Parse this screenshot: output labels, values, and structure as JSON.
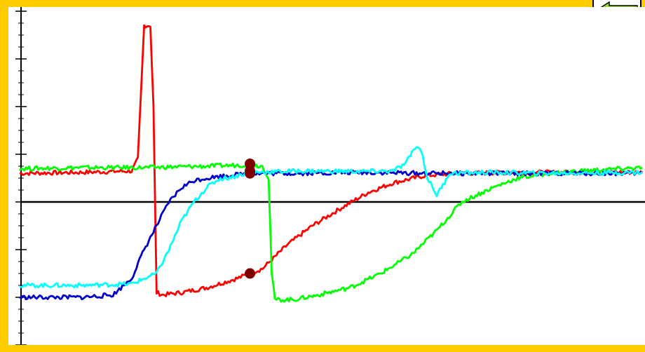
{
  "title": "",
  "back_button": {
    "icon": "left-arrow-icon",
    "color": "#99dd33"
  },
  "chart_data": {
    "type": "line",
    "title": "",
    "xlabel": "",
    "ylabel": "",
    "xlim": [
      0,
      100
    ],
    "ylim": [
      -3,
      4
    ],
    "grid": false,
    "legend": "none",
    "baseline": 0,
    "y_ticks_major": [
      -3,
      -2,
      -1,
      0,
      1,
      2,
      3,
      4
    ],
    "y_ticks_minor_per_major": 4,
    "series": [
      {
        "color": "#ff0000",
        "points": [
          [
            0,
            0.6
          ],
          [
            10,
            0.62
          ],
          [
            18,
            0.65
          ],
          [
            19,
            0.9
          ],
          [
            20,
            3.7
          ],
          [
            21,
            3.7
          ],
          [
            21.5,
            2
          ],
          [
            22,
            -1.9
          ],
          [
            23,
            -1.95
          ],
          [
            26,
            -1.9
          ],
          [
            30,
            -1.8
          ],
          [
            35,
            -1.6
          ],
          [
            37,
            -1.5
          ],
          [
            39,
            -1.4
          ],
          [
            43,
            -0.9
          ],
          [
            47,
            -0.5
          ],
          [
            52,
            -0.1
          ],
          [
            56,
            0.2
          ],
          [
            60,
            0.4
          ],
          [
            65,
            0.55
          ],
          [
            70,
            0.6
          ],
          [
            80,
            0.62
          ],
          [
            100,
            0.62
          ]
        ],
        "markers": [
          [
            37,
            -1.5
          ]
        ]
      },
      {
        "color": "#00ff00",
        "points": [
          [
            0,
            0.7
          ],
          [
            10,
            0.72
          ],
          [
            20,
            0.72
          ],
          [
            30,
            0.75
          ],
          [
            37,
            0.78
          ],
          [
            39,
            0.75
          ],
          [
            40,
            0.5
          ],
          [
            40.5,
            -1.5
          ],
          [
            41,
            -2.05
          ],
          [
            44,
            -2.05
          ],
          [
            48,
            -1.95
          ],
          [
            53,
            -1.8
          ],
          [
            58,
            -1.5
          ],
          [
            63,
            -1.1
          ],
          [
            67,
            -0.6
          ],
          [
            71,
            0
          ],
          [
            76,
            0.3
          ],
          [
            80,
            0.5
          ],
          [
            85,
            0.6
          ],
          [
            90,
            0.65
          ],
          [
            100,
            0.72
          ]
        ],
        "markers": [
          [
            37,
            0.8
          ]
        ]
      },
      {
        "color": "#0000cc",
        "points": [
          [
            0,
            -2
          ],
          [
            10,
            -2
          ],
          [
            15,
            -1.95
          ],
          [
            18,
            -1.6
          ],
          [
            20,
            -1
          ],
          [
            22,
            -0.5
          ],
          [
            24,
            0
          ],
          [
            26,
            0.3
          ],
          [
            28,
            0.45
          ],
          [
            30,
            0.5
          ],
          [
            33,
            0.55
          ],
          [
            37,
            0.6
          ],
          [
            45,
            0.6
          ],
          [
            55,
            0.62
          ],
          [
            65,
            0.6
          ],
          [
            75,
            0.6
          ],
          [
            85,
            0.6
          ],
          [
            100,
            0.6
          ]
        ],
        "markers": [
          [
            37,
            0.6
          ]
        ]
      },
      {
        "color": "#00ffff",
        "points": [
          [
            0,
            -1.75
          ],
          [
            10,
            -1.75
          ],
          [
            18,
            -1.72
          ],
          [
            22,
            -1.5
          ],
          [
            24,
            -1
          ],
          [
            26,
            -0.4
          ],
          [
            28,
            0
          ],
          [
            30,
            0.3
          ],
          [
            32,
            0.48
          ],
          [
            34,
            0.52
          ],
          [
            37,
            0.62
          ],
          [
            45,
            0.65
          ],
          [
            55,
            0.64
          ],
          [
            60,
            0.65
          ],
          [
            62,
            0.8
          ],
          [
            63.5,
            1.15
          ],
          [
            64.5,
            1.1
          ],
          [
            65.5,
            0.5
          ],
          [
            67,
            0.15
          ],
          [
            68,
            0.35
          ],
          [
            69,
            0.6
          ],
          [
            75,
            0.62
          ],
          [
            85,
            0.6
          ],
          [
            100,
            0.62
          ]
        ],
        "markers": [
          [
            37,
            0.65
          ]
        ]
      }
    ]
  }
}
